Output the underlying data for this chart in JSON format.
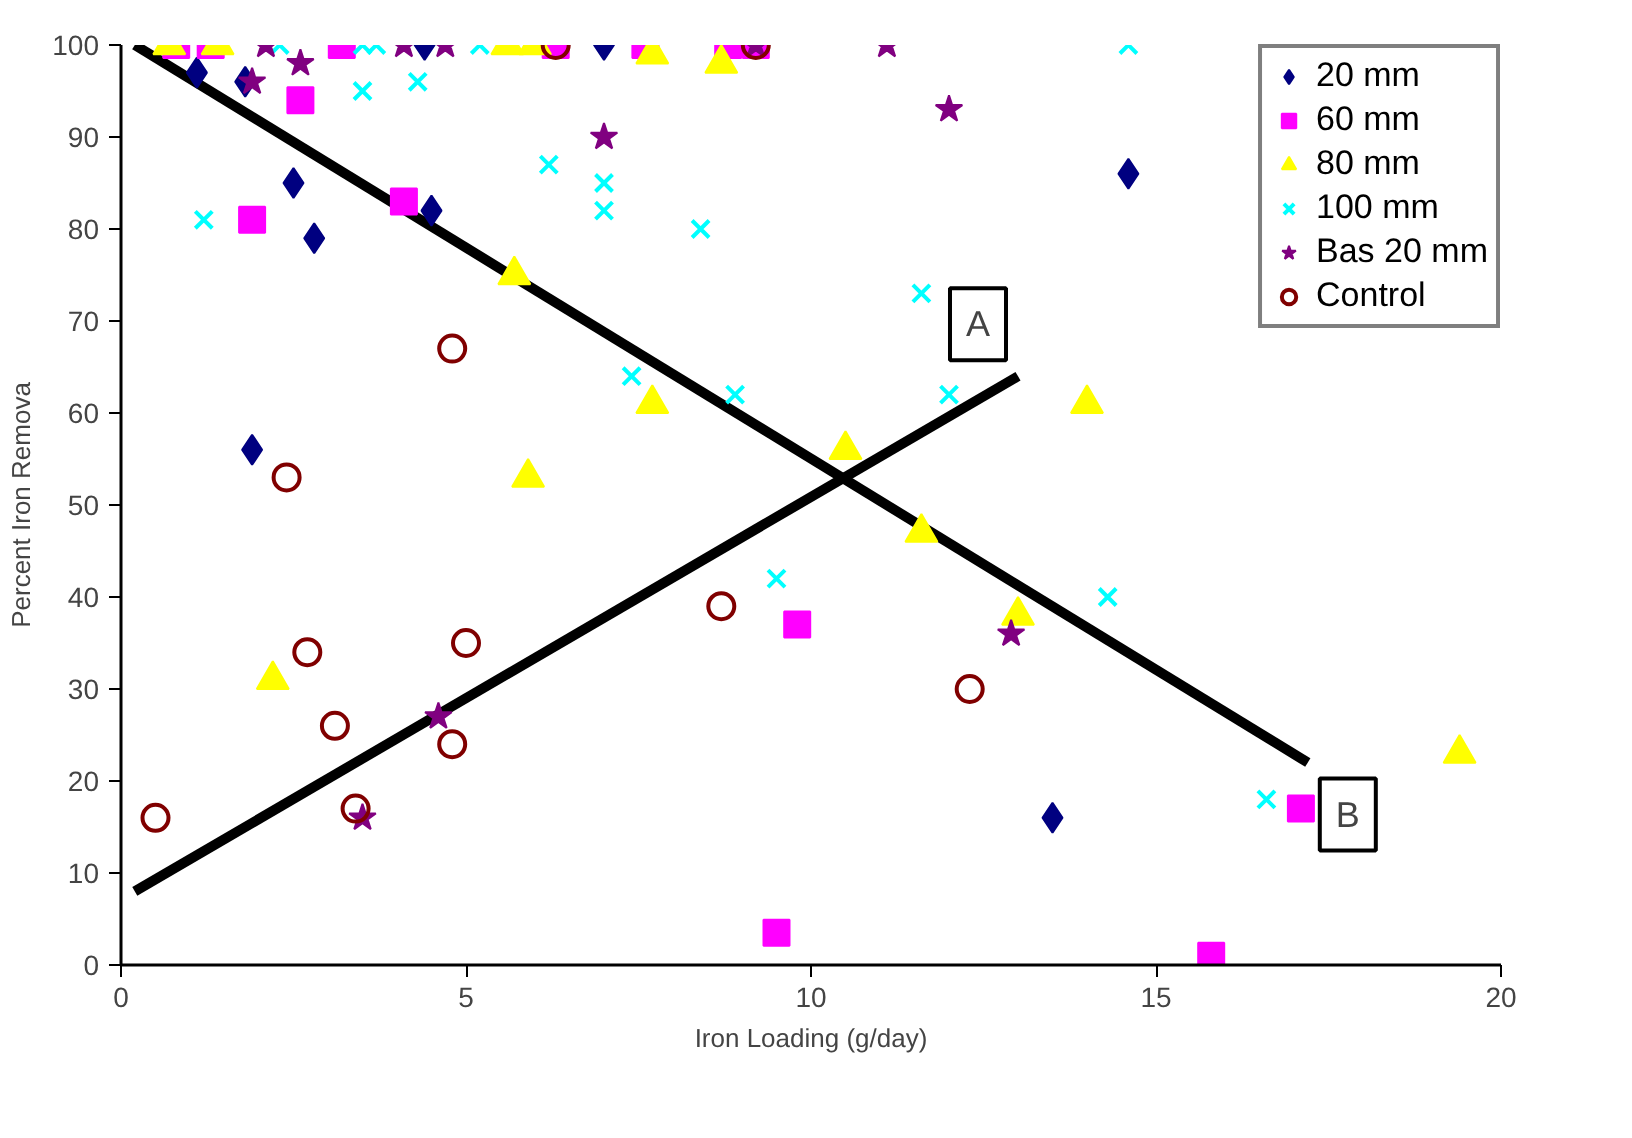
{
  "chart_data": {
    "type": "scatter",
    "xlabel": "Iron Loading (g/day)",
    "ylabel": "Percent Iron Remova",
    "xlim": [
      0,
      20
    ],
    "xticks": [
      0,
      5,
      10,
      15,
      20
    ],
    "ylim": [
      0,
      100
    ],
    "yticks": [
      0,
      10,
      20,
      30,
      40,
      50,
      60,
      70,
      80,
      90,
      100
    ],
    "grid": false,
    "legend": "top right",
    "series": [
      {
        "name": "20 mm",
        "color": "#000080",
        "marker": "diamond",
        "x": [
          1.1,
          1.8,
          2.5,
          2.8,
          4.5,
          1.9,
          4.4,
          7.0,
          14.6,
          13.5
        ],
        "values": [
          97,
          96,
          85,
          79,
          82,
          56,
          100,
          100,
          86,
          16
        ]
      },
      {
        "name": "60 mm",
        "color": "#ff00ff",
        "marker": "square",
        "x": [
          0.8,
          1.3,
          3.2,
          6.3,
          7.6,
          8.8,
          9.2,
          2.6,
          1.9,
          4.1,
          9.8,
          9.5,
          15.8,
          17.1
        ],
        "values": [
          100,
          100,
          100,
          100,
          100,
          100,
          100,
          94,
          81,
          83,
          37,
          3.5,
          1,
          17
        ]
      },
      {
        "name": "80 mm",
        "color": "#ffff00",
        "marker": "triangle",
        "x": [
          0.7,
          1.4,
          5.6,
          6.0,
          7.7,
          8.7,
          5.7,
          5.9,
          2.2,
          7.7,
          10.5,
          14.0,
          11.6,
          13.0,
          19.4
        ],
        "values": [
          100,
          100,
          100,
          100,
          99,
          98,
          75,
          53,
          31,
          61,
          56,
          61,
          47,
          38,
          23
        ]
      },
      {
        "name": "100 mm",
        "color": "#00ffff",
        "marker": "cross",
        "x": [
          1.2,
          3.5,
          4.3,
          6.2,
          7.0,
          7.0,
          7.4,
          2.3,
          3.5,
          3.7,
          5.2,
          14.6,
          8.4,
          11.6,
          8.9,
          12.0,
          9.5,
          14.3,
          16.6
        ],
        "values": [
          81,
          95,
          96,
          87,
          85,
          82,
          64,
          100,
          100,
          100,
          100,
          100,
          80,
          73,
          62,
          62,
          42,
          40,
          18
        ]
      },
      {
        "name": "Bas 20 mm",
        "color": "#800080",
        "marker": "star",
        "x": [
          2.1,
          2.6,
          1.9,
          4.1,
          4.7,
          9.2,
          11.1,
          12.0,
          7.0,
          4.6,
          3.5,
          12.9
        ],
        "values": [
          100,
          98,
          96,
          100,
          100,
          100,
          100,
          93,
          90,
          27,
          16,
          36
        ]
      },
      {
        "name": "Control",
        "color": "#800000",
        "marker": "circle",
        "x": [
          6.3,
          9.2,
          4.8,
          2.4,
          0.5,
          2.7,
          3.1,
          3.4,
          5.0,
          4.8,
          8.7,
          12.3
        ],
        "values": [
          100,
          100,
          67,
          53,
          16,
          34,
          26,
          17,
          35,
          24,
          39,
          30
        ]
      },
      {
        "name": "A",
        "type": "line",
        "color": "#000000",
        "marker": "none",
        "x": [
          0.2,
          13.0
        ],
        "values": [
          8,
          64
        ]
      },
      {
        "name": "B",
        "type": "line",
        "color": "#000000",
        "marker": "none",
        "x": [
          0.2,
          17.2
        ],
        "values": [
          100,
          22
        ]
      }
    ]
  }
}
